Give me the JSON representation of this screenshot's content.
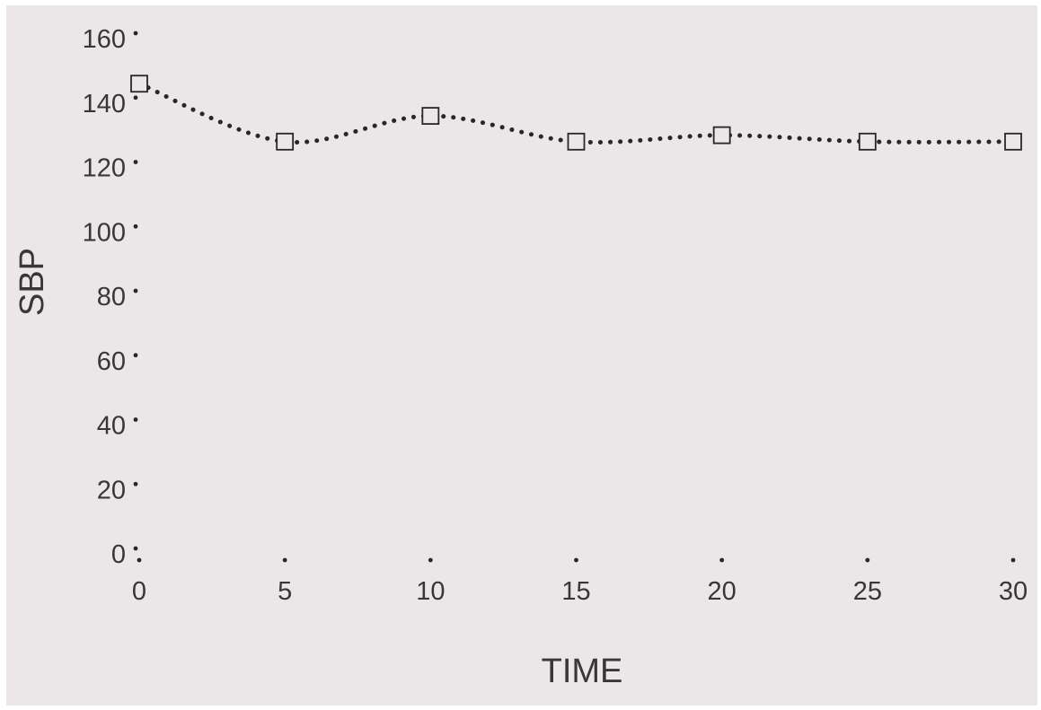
{
  "chart_data": {
    "type": "line",
    "title": "",
    "xlabel": "TIME",
    "ylabel": "SBP",
    "x": [
      0,
      5,
      10,
      15,
      20,
      25,
      30
    ],
    "series": [
      {
        "values": [
          146,
          128,
          136,
          128,
          130,
          128,
          128
        ],
        "marker": "open-square",
        "line_style": "dotted",
        "color": "#2a2628"
      }
    ],
    "xticks": [
      "0",
      "5",
      "10",
      "15",
      "20",
      "25",
      "30"
    ],
    "yticks": [
      "0",
      "20",
      "40",
      "60",
      "80",
      "100",
      "120",
      "140",
      "160"
    ],
    "xlim": [
      0,
      30
    ],
    "ylim": [
      0,
      160
    ],
    "grid": false,
    "legend": "none",
    "background": "#ebe6e7"
  }
}
